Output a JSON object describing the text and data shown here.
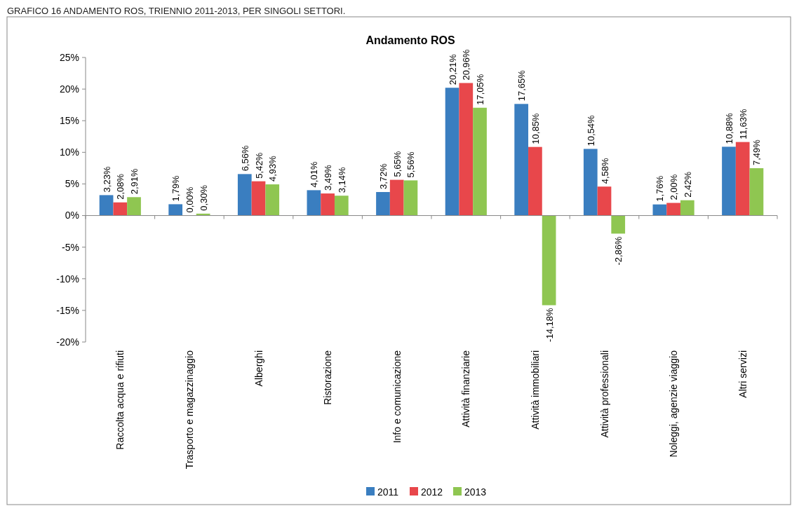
{
  "chart_data": {
    "type": "bar",
    "title": "Andamento ROS",
    "annotations": [
      "GRAFICO 16 ANDAMENTO ROS, TRIENNIO 2011-2013, PER SINGOLI SETTORI."
    ],
    "categories": [
      "Raccolta acqua e rifiuti",
      "Trasporto e magazzinaggio",
      "Alberghi",
      "Ristorazione",
      "Info e comunicazione",
      "Attività finanziarie",
      "Attività immobiliari",
      "Attività professionali",
      "Noleggi, agenzie viaggio",
      "Altri servizi"
    ],
    "series": [
      {
        "name": "2011",
        "color": "#3a7ec0",
        "values": [
          3.23,
          1.79,
          6.56,
          4.01,
          3.72,
          20.21,
          17.65,
          10.54,
          1.76,
          10.88
        ],
        "value_labels": [
          "3,23%",
          "1,79%",
          "6,56%",
          "4,01%",
          "3,72%",
          "20,21%",
          "17,65%",
          "10,54%",
          "1,76%",
          "10,88%"
        ]
      },
      {
        "name": "2012",
        "color": "#e8474b",
        "values": [
          2.08,
          0.0,
          5.42,
          3.49,
          5.65,
          20.96,
          10.85,
          4.58,
          2.0,
          11.63
        ],
        "value_labels": [
          "2,08%",
          "0,00%",
          "5,42%",
          "3,49%",
          "5,65%",
          "20,96%",
          "10,85%",
          "4,58%",
          "2,00%",
          "11,63%"
        ]
      },
      {
        "name": "2013",
        "color": "#8fc651",
        "values": [
          2.91,
          0.3,
          4.93,
          3.14,
          5.56,
          17.05,
          -14.18,
          -2.86,
          2.42,
          7.49
        ],
        "value_labels": [
          "2,91%",
          "0,30%",
          "4,93%",
          "3,14%",
          "5,56%",
          "17,05%",
          "-14,18%",
          "-2,86%",
          "2,42%",
          "7,49%"
        ]
      }
    ],
    "ylim": [
      -20,
      25
    ],
    "yticks": [
      {
        "value": -20,
        "label": "-20%"
      },
      {
        "value": -15,
        "label": "-15%"
      },
      {
        "value": -10,
        "label": "-10%"
      },
      {
        "value": -5,
        "label": "-5%"
      },
      {
        "value": 0,
        "label": "0%"
      },
      {
        "value": 5,
        "label": "5%"
      },
      {
        "value": 10,
        "label": "10%"
      },
      {
        "value": 15,
        "label": "15%"
      },
      {
        "value": 20,
        "label": "20%"
      },
      {
        "value": 25,
        "label": "25%"
      }
    ],
    "legend": "bottom"
  }
}
